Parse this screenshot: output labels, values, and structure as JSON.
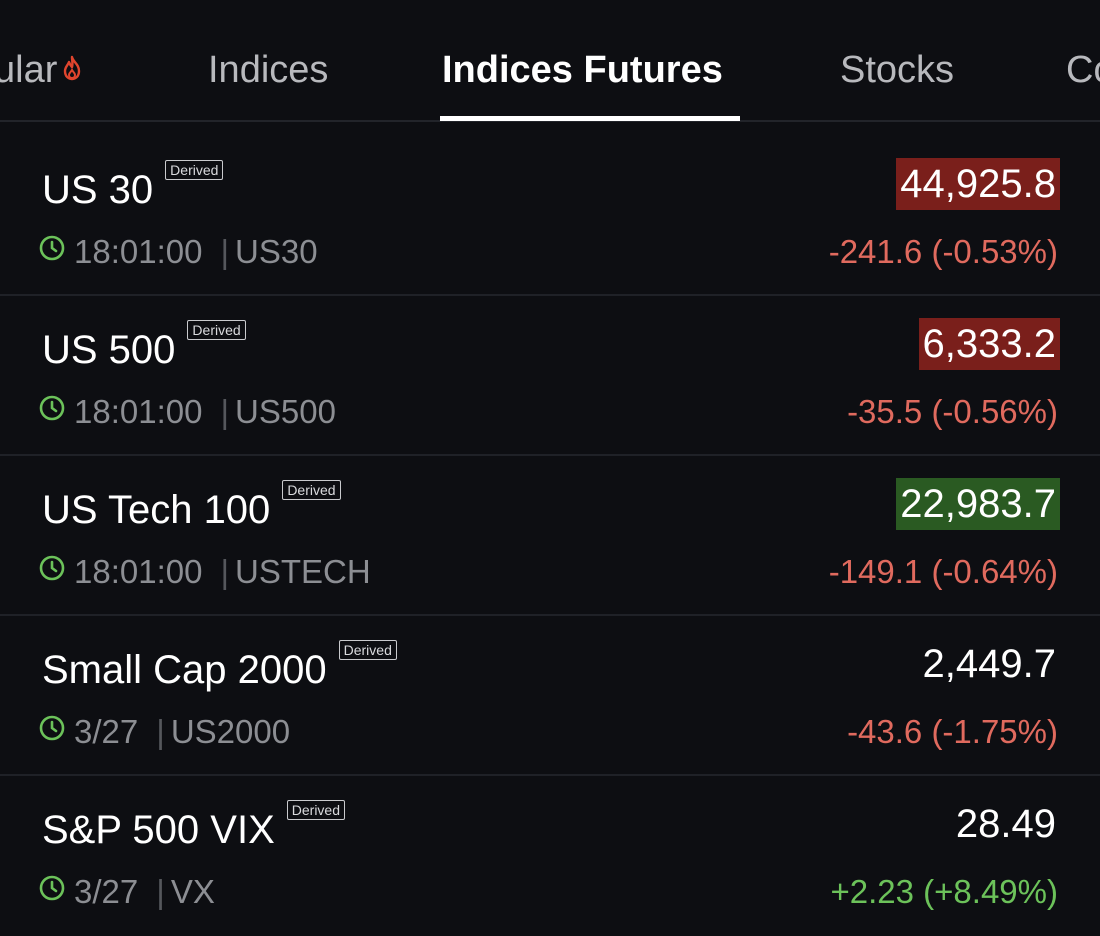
{
  "tabs": [
    {
      "label": "ular"
    },
    {
      "label": "Indices"
    },
    {
      "label": "Indices Futures"
    },
    {
      "label": "Stocks"
    },
    {
      "label": "Co"
    }
  ],
  "badge_label": "Derived",
  "colors": {
    "background": "#0d0e12",
    "negative": "#e06a5e",
    "positive": "#6cc25a",
    "price_down_bg": "#7a1f1b",
    "price_up_bg": "#2a5a22",
    "clock_icon": "#6cc25a",
    "flame_icon": "#e0452e"
  },
  "rows": [
    {
      "name": "US 30",
      "time": "18:01:00",
      "symbol": "US30",
      "price": "44,925.8",
      "change": "-241.6 (-0.53%)"
    },
    {
      "name": "US 500",
      "time": "18:01:00",
      "symbol": "US500",
      "price": "6,333.2",
      "change": "-35.5 (-0.56%)"
    },
    {
      "name": "US Tech 100",
      "time": "18:01:00",
      "symbol": "USTECH",
      "price": "22,983.7",
      "change": "-149.1 (-0.64%)"
    },
    {
      "name": "Small Cap 2000",
      "time": "3/27",
      "symbol": "US2000",
      "price": "2,449.7",
      "change": "-43.6 (-1.75%)"
    },
    {
      "name": "S&P 500 VIX",
      "time": "3/27",
      "symbol": "VX",
      "price": "28.49",
      "change": "+2.23 (+8.49%)"
    }
  ]
}
